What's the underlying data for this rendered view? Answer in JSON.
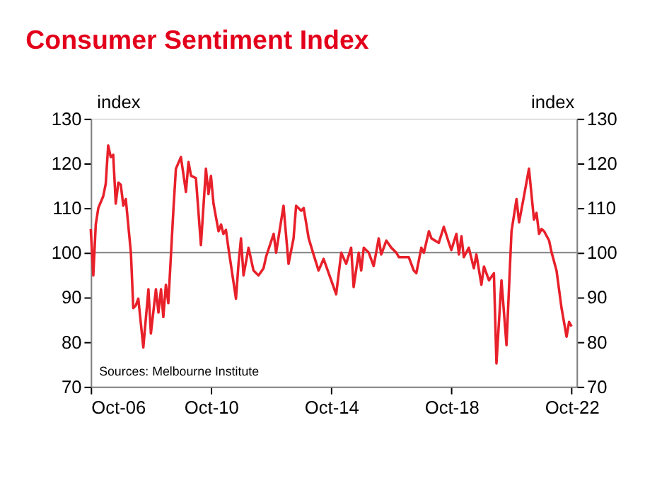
{
  "chart_data": {
    "type": "line",
    "title": "Consumer Sentiment Index",
    "ylabel": "index",
    "y2label": "index",
    "annotations": [
      "Sources: Melbourne Institute"
    ],
    "x": [
      "2006-10",
      "2006-11",
      "2006-12",
      "2007-01",
      "2007-03",
      "2007-04",
      "2007-05",
      "2007-06",
      "2007-07",
      "2007-08",
      "2007-09",
      "2007-10",
      "2007-11",
      "2007-12",
      "2008-02",
      "2008-03",
      "2008-04",
      "2008-05",
      "2008-07",
      "2008-09",
      "2008-10",
      "2008-12",
      "2009-01",
      "2009-02",
      "2009-03",
      "2009-04",
      "2009-05",
      "2009-07",
      "2009-08",
      "2009-10",
      "2009-12",
      "2010-01",
      "2010-02",
      "2010-04",
      "2010-05",
      "2010-06",
      "2010-08",
      "2010-09",
      "2010-10",
      "2010-11",
      "2011-01",
      "2011-02",
      "2011-03",
      "2011-04",
      "2011-05",
      "2011-08",
      "2011-09",
      "2011-10",
      "2011-11",
      "2012-01",
      "2012-03",
      "2012-05",
      "2012-07",
      "2012-08",
      "2012-11",
      "2012-12",
      "2013-03",
      "2013-05",
      "2013-07",
      "2013-08",
      "2013-10",
      "2013-11",
      "2014-01",
      "2014-03",
      "2014-05",
      "2014-07",
      "2014-09",
      "2014-12",
      "2015-02",
      "2015-04",
      "2015-06",
      "2015-07",
      "2015-09",
      "2015-10",
      "2015-11",
      "2016-01",
      "2016-03",
      "2016-05",
      "2016-06",
      "2016-08",
      "2016-10",
      "2016-12",
      "2017-01",
      "2017-05",
      "2017-07",
      "2017-08",
      "2017-10",
      "2017-11",
      "2018-01",
      "2018-02",
      "2018-05",
      "2018-07",
      "2018-09",
      "2018-10",
      "2018-12",
      "2019-01",
      "2019-02",
      "2019-03",
      "2019-05",
      "2019-07",
      "2019-08",
      "2019-10",
      "2019-11",
      "2020-01",
      "2020-03",
      "2020-04",
      "2020-06",
      "2020-08",
      "2020-10",
      "2020-12",
      "2021-01",
      "2021-03",
      "2021-05",
      "2021-07",
      "2021-08",
      "2021-09",
      "2021-10",
      "2021-11",
      "2022-01",
      "2022-02",
      "2022-04",
      "2022-06",
      "2022-08",
      "2022-09",
      "2022-10"
    ],
    "series": [
      {
        "color": "#e8202a",
        "values": [
          105.3,
          94.9,
          106.3,
          110,
          112.6,
          115.4,
          124,
          121.4,
          121.9,
          111,
          115.7,
          115.2,
          110.5,
          112,
          100,
          87.6,
          88.2,
          89.7,
          78.8,
          91.8,
          81.9,
          91.8,
          86.6,
          91.8,
          85.6,
          92.8,
          88.7,
          109.4,
          118.8,
          121.4,
          113.6,
          120.3,
          117.2,
          116.7,
          109.4,
          101.7,
          118.8,
          113.1,
          117.2,
          111,
          104.8,
          106.3,
          104.2,
          105.1,
          101.1,
          89.7,
          97.5,
          103.2,
          94.9,
          101.1,
          96,
          94.9,
          96.5,
          99.1,
          104.2,
          100,
          110.5,
          97.5,
          103.2,
          110.5,
          109.4,
          110,
          103.2,
          99.6,
          96,
          98.6,
          95.4,
          90.7,
          100,
          97.5,
          101.1,
          92.3,
          100,
          96,
          101.1,
          100,
          97,
          103.2,
          99.6,
          102.7,
          101.1,
          100,
          99,
          99,
          96,
          95.4,
          101.1,
          100,
          104.8,
          103.2,
          102.2,
          105.8,
          102.2,
          100.6,
          104.2,
          99.6,
          103.7,
          99,
          101.1,
          96.5,
          99.6,
          92.8,
          96.9,
          93.8,
          95.4,
          75.2,
          93.8,
          79.3,
          104.8,
          112,
          106.8,
          112.6,
          118.8,
          107.4,
          108.9,
          104.2,
          105.3,
          104.8,
          102.7,
          100,
          96,
          87.6,
          81.2,
          84.5,
          83.5
        ]
      }
    ],
    "xlim": [
      "2006-10",
      "2022-12"
    ],
    "xticks": [
      {
        "value": "2006-10",
        "label": "Oct-06"
      },
      {
        "value": "2010-10",
        "label": "Oct-10"
      },
      {
        "value": "2014-10",
        "label": "Oct-14"
      },
      {
        "value": "2018-10",
        "label": "Oct-18"
      },
      {
        "value": "2022-10",
        "label": "Oct-22"
      }
    ],
    "ylim": [
      70,
      130
    ],
    "yticks": [
      70,
      80,
      90,
      100,
      110,
      120,
      130
    ],
    "y2lim": [
      70,
      130
    ],
    "y2ticks": [
      70,
      80,
      90,
      100,
      110,
      120,
      130
    ],
    "ref_lines": [
      {
        "axis": "y",
        "value": 100,
        "color": "#808080"
      }
    ],
    "grid": false
  }
}
